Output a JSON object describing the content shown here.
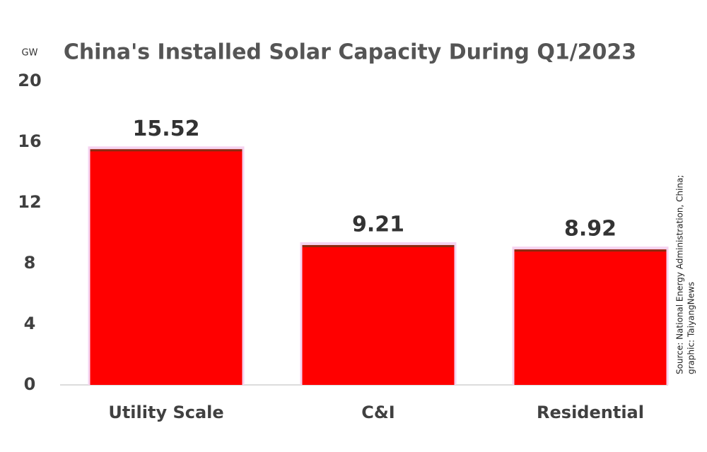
{
  "chart_data": {
    "type": "bar",
    "title": "China's Installed Solar Capacity During Q1/2023",
    "y_unit": "GW",
    "source": [
      "Source: National Energy Administration, China;",
      "graphic: TaiyangNews"
    ],
    "categories": [
      "Utility Scale",
      "C&I",
      "Residential"
    ],
    "values": [
      15.52,
      9.21,
      8.92
    ],
    "color": "#ff0000",
    "ylim": [
      0,
      20
    ],
    "yticks": [
      0,
      4,
      8,
      12,
      16,
      20
    ],
    "grid": false
  }
}
